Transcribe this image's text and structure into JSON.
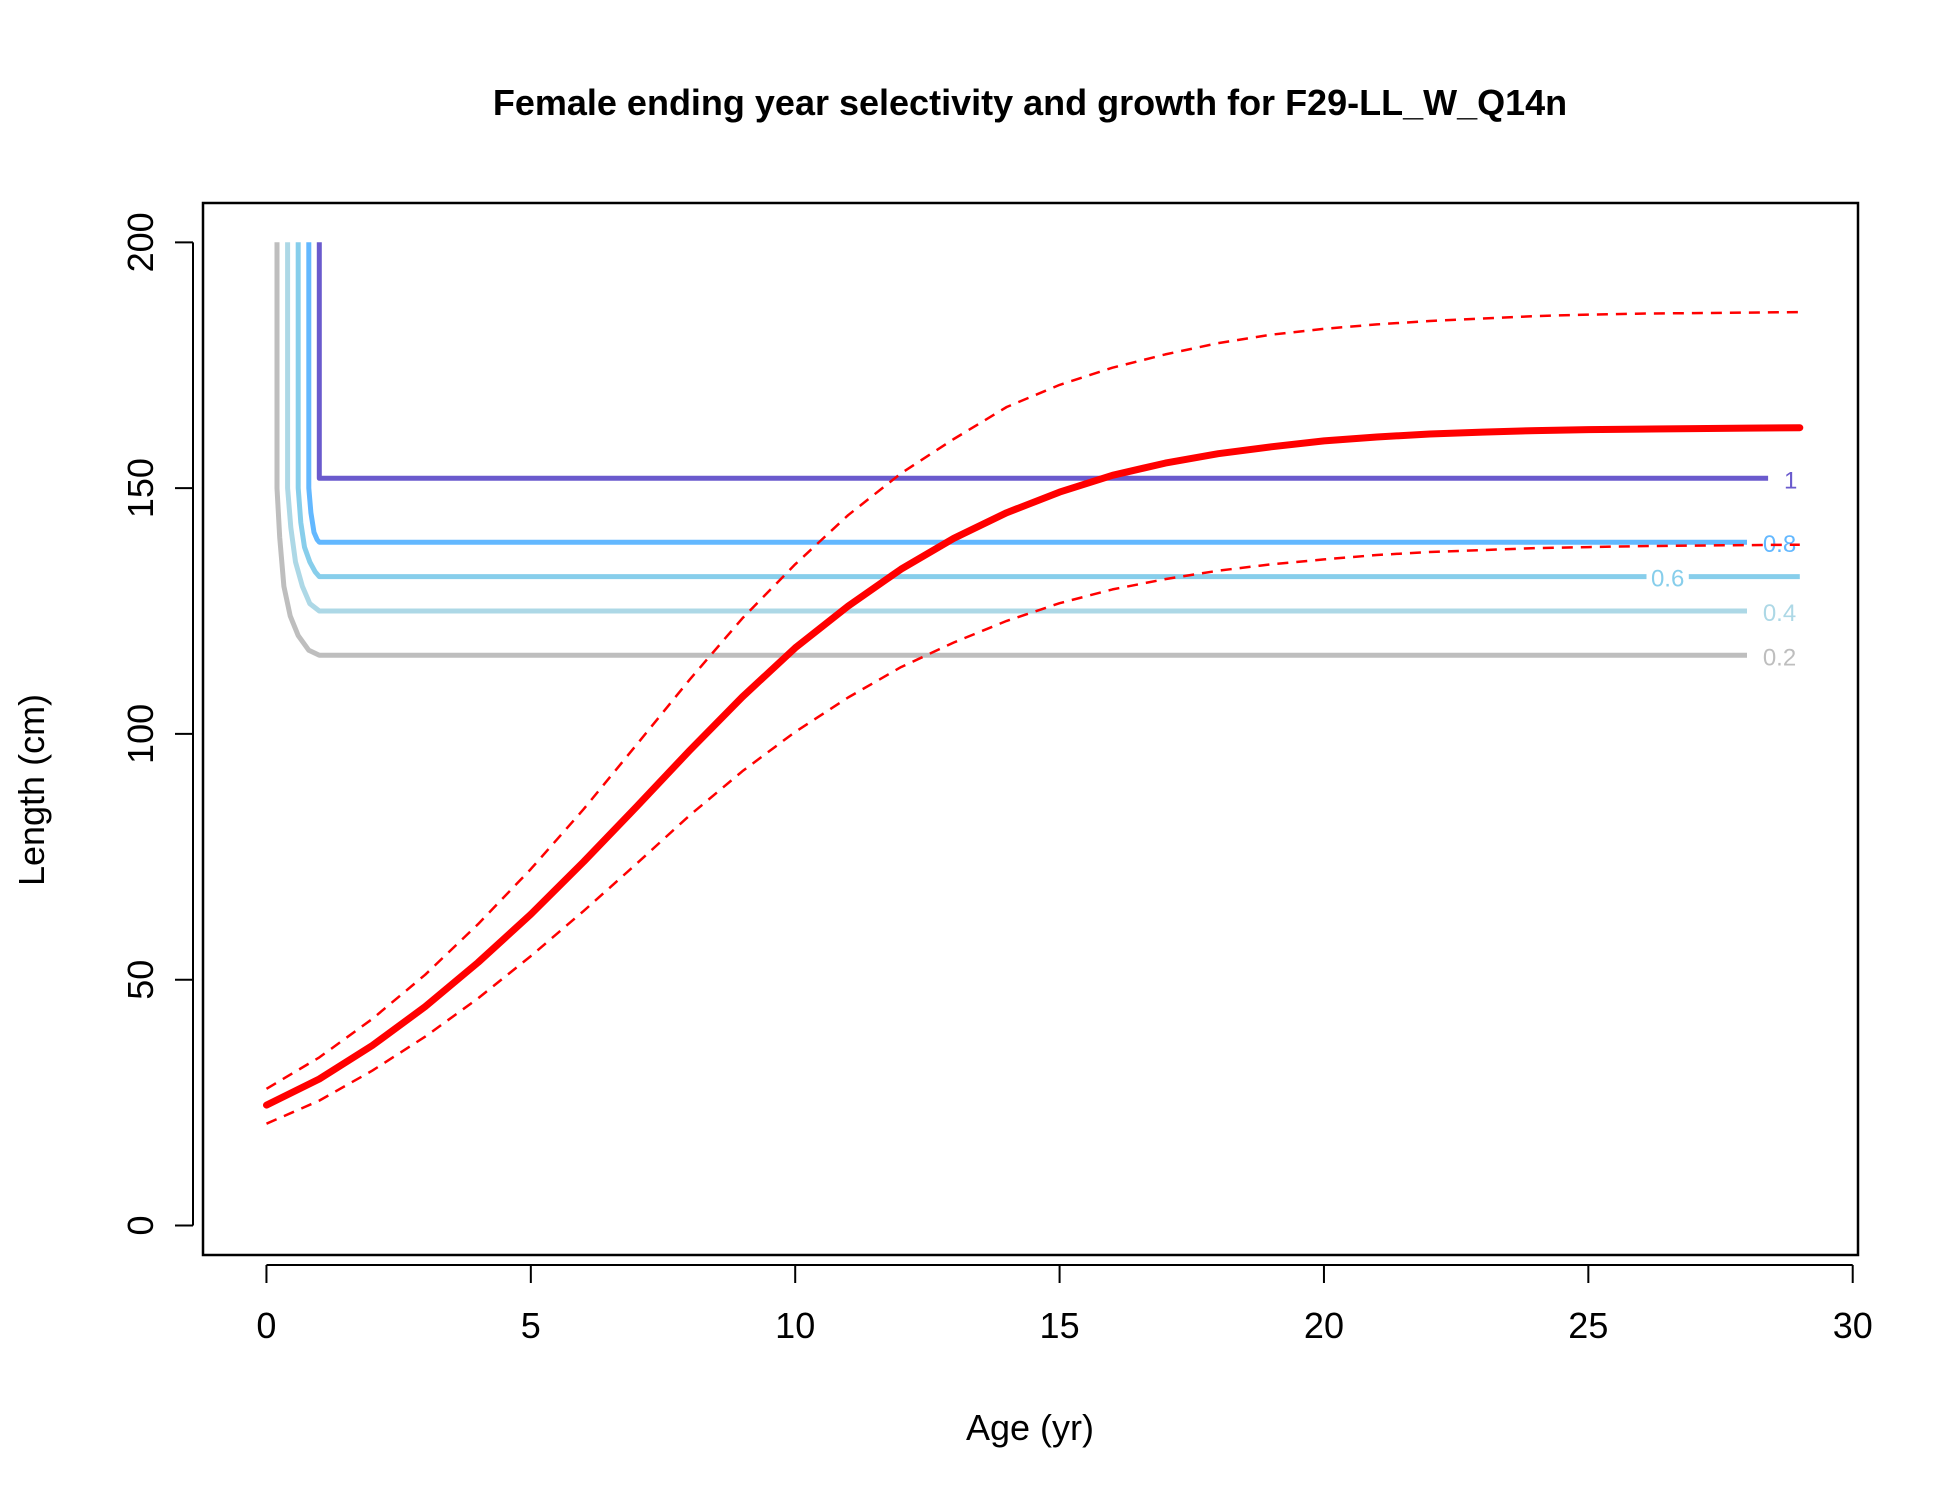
{
  "chart_data": {
    "type": "line",
    "title": "Female ending year selectivity and growth for F29-LL_W_Q14n",
    "xlabel": "Age (yr)",
    "ylabel": "Length (cm)",
    "xlim": [
      -1.2,
      30.1
    ],
    "ylim": [
      -6,
      208
    ],
    "x_ticks": [
      "0",
      "5",
      "10",
      "15",
      "20",
      "25",
      "30"
    ],
    "y_ticks": [
      "0",
      "50",
      "100",
      "150",
      "200"
    ],
    "x_tick_values": [
      0,
      5,
      10,
      15,
      20,
      25,
      30
    ],
    "y_tick_values": [
      0,
      50,
      100,
      150,
      200
    ],
    "grid": false,
    "legend": "none",
    "contours": [
      {
        "label": "0.2",
        "color": "#bebebe",
        "points": [
          [
            0.2,
            200
          ],
          [
            0.2,
            150
          ],
          [
            0.25,
            140
          ],
          [
            0.33,
            130
          ],
          [
            0.45,
            124
          ],
          [
            0.6,
            120
          ],
          [
            0.8,
            117
          ],
          [
            1,
            116
          ],
          [
            28,
            116
          ]
        ]
      },
      {
        "label": "0.4",
        "color": "#add8e6",
        "points": [
          [
            0.4,
            200
          ],
          [
            0.4,
            150
          ],
          [
            0.46,
            142
          ],
          [
            0.55,
            135
          ],
          [
            0.68,
            130
          ],
          [
            0.82,
            126.5
          ],
          [
            1,
            125
          ],
          [
            28,
            125
          ]
        ]
      },
      {
        "label": "0.6",
        "color": "#87ceeb",
        "points": [
          [
            0.6,
            200
          ],
          [
            0.6,
            150
          ],
          [
            0.65,
            143
          ],
          [
            0.72,
            138
          ],
          [
            0.82,
            135
          ],
          [
            0.92,
            133
          ],
          [
            1,
            132
          ],
          [
            26.1,
            132
          ]
        ],
        "points_after_label": [
          [
            26.9,
            132
          ],
          [
            29,
            132
          ]
        ]
      },
      {
        "label": "0.8",
        "color": "#63b8ff",
        "points": [
          [
            0.8,
            200
          ],
          [
            0.8,
            150
          ],
          [
            0.84,
            145
          ],
          [
            0.9,
            141
          ],
          [
            0.96,
            139.5
          ],
          [
            1,
            139
          ],
          [
            28,
            139
          ]
        ]
      },
      {
        "label": "1",
        "color": "#6a5acd",
        "points": [
          [
            1,
            200
          ],
          [
            1,
            152
          ],
          [
            28.4,
            152
          ]
        ]
      }
    ],
    "series": [
      {
        "name": "",
        "role": "growth",
        "color": "#ff0000",
        "style": "solid",
        "x": [
          0,
          1,
          2,
          3,
          4,
          5,
          6,
          7,
          8,
          9,
          10,
          11,
          12,
          13,
          14,
          15,
          16,
          17,
          18,
          19,
          20,
          21,
          22,
          23,
          24,
          25,
          26,
          27,
          28,
          29
        ],
        "values": [
          24.5,
          29.8,
          36.6,
          44.5,
          53.5,
          63.3,
          74.0,
          85.2,
          96.6,
          107.5,
          117.5,
          126.0,
          133.5,
          139.8,
          145.0,
          149.2,
          152.6,
          155.1,
          157.0,
          158.4,
          159.6,
          160.4,
          161.0,
          161.4,
          161.7,
          161.9,
          162.0,
          162.1,
          162.2,
          162.3
        ]
      },
      {
        "name": "",
        "role": "upper-bound",
        "color": "#ff0000",
        "style": "dashed",
        "x": [
          0,
          1,
          2,
          3,
          4,
          5,
          6,
          7,
          8,
          9,
          10,
          11,
          12,
          13,
          14,
          15,
          16,
          17,
          18,
          19,
          20,
          21,
          22,
          23,
          24,
          25,
          26,
          27,
          28,
          29
        ],
        "values": [
          27.8,
          34.2,
          42.0,
          51.0,
          61.3,
          72.5,
          84.7,
          97.8,
          111.0,
          123.5,
          134.5,
          144.5,
          153.0,
          160.0,
          166.5,
          171.0,
          174.5,
          177.2,
          179.5,
          181.2,
          182.4,
          183.3,
          184.0,
          184.5,
          185.0,
          185.3,
          185.5,
          185.6,
          185.7,
          185.8
        ]
      },
      {
        "name": "",
        "role": "lower-bound",
        "color": "#ff0000",
        "style": "dashed",
        "x": [
          0,
          1,
          2,
          3,
          4,
          5,
          6,
          7,
          8,
          9,
          10,
          11,
          12,
          13,
          14,
          15,
          16,
          17,
          18,
          19,
          20,
          21,
          22,
          23,
          24,
          25,
          26,
          27,
          28,
          29
        ],
        "values": [
          20.7,
          25.4,
          31.5,
          38.4,
          46.2,
          54.8,
          64.0,
          73.6,
          83.4,
          92.4,
          100.4,
          107.4,
          113.6,
          118.6,
          123.0,
          126.6,
          129.4,
          131.5,
          133.2,
          134.5,
          135.5,
          136.4,
          137.0,
          137.4,
          137.8,
          138.0,
          138.2,
          138.3,
          138.4,
          138.5
        ]
      }
    ]
  }
}
